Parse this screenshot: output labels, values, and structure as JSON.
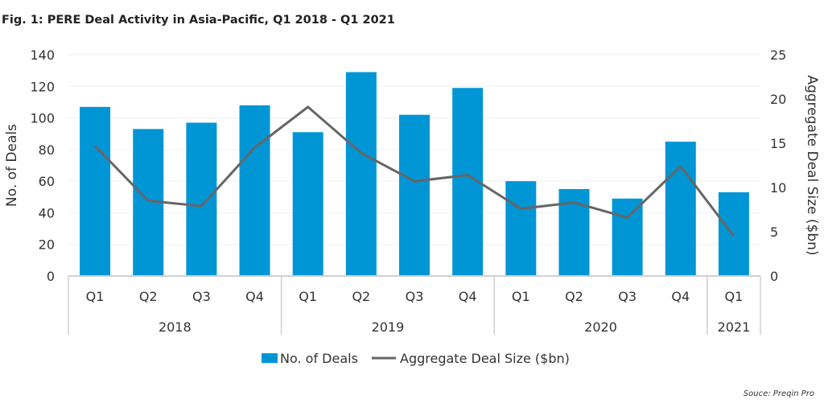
{
  "chart_data": {
    "type": "bar+line",
    "title": "Fig. 1: PERE Deal Activity in Asia-Pacific, Q1 2018 - Q1 2021",
    "categories": [
      "Q1",
      "Q2",
      "Q3",
      "Q4",
      "Q1",
      "Q2",
      "Q3",
      "Q4",
      "Q1",
      "Q2",
      "Q3",
      "Q4",
      "Q1"
    ],
    "groups": [
      {
        "label": "2018",
        "count": 4
      },
      {
        "label": "2019",
        "count": 4
      },
      {
        "label": "2020",
        "count": 4
      },
      {
        "label": "2021",
        "count": 1
      }
    ],
    "series": [
      {
        "name": "No. of Deals",
        "type": "bar",
        "axis": "left",
        "color": "#0096d6",
        "values": [
          107,
          93,
          97,
          108,
          91,
          129,
          102,
          119,
          60,
          55,
          49,
          85,
          53
        ]
      },
      {
        "name": "Aggregate Deal Size ($bn)",
        "type": "line",
        "axis": "right",
        "color": "#666666",
        "values": [
          14.7,
          8.5,
          7.9,
          14.5,
          19.1,
          13.9,
          10.7,
          11.4,
          7.6,
          8.3,
          6.6,
          12.4,
          4.5
        ]
      }
    ],
    "ylabel": "No. of Deals",
    "ylim": [
      0,
      140
    ],
    "yticks": [
      0,
      20,
      40,
      60,
      80,
      100,
      120,
      140
    ],
    "y2label": "Aggregate Deal Size ($bn)",
    "y2lim": [
      0,
      25
    ],
    "y2ticks": [
      0,
      5,
      10,
      15,
      20,
      25
    ],
    "grid": true,
    "legend": "bottom"
  },
  "source": "Souce: Preqin Pro"
}
